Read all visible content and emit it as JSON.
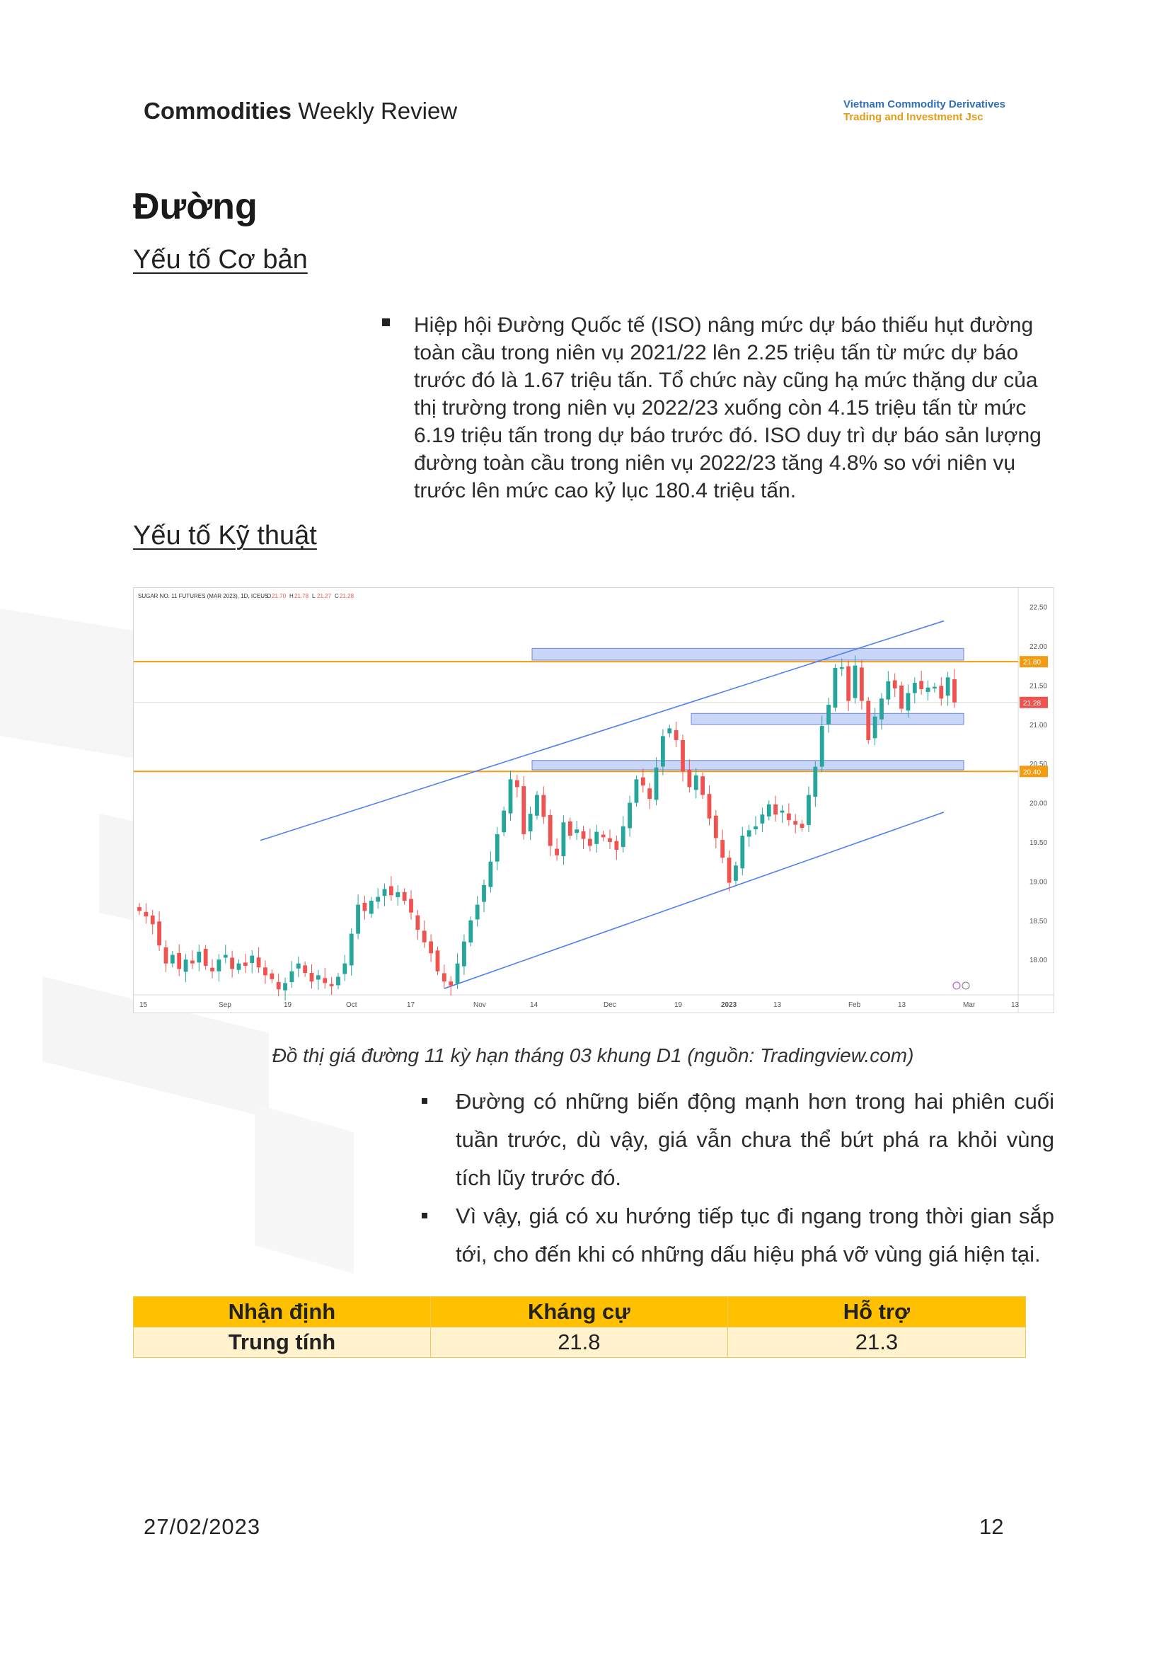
{
  "header": {
    "title_bold": "Commodities",
    "title_rest": " Weekly Review",
    "brand_line1": "Vietnam Commodity Derivatives",
    "brand_line2": "Trading and Investment Jsc",
    "brand_colors": {
      "line1": "#2e6fb7",
      "line2": "#e39b18"
    }
  },
  "section_title": "Đường",
  "fundamentals": {
    "heading": "Yếu tố Cơ bản",
    "paragraph": "Hiệp hội Đường Quốc tế (ISO) nâng mức dự báo thiếu hụt đường toàn cầu trong niên vụ 2021/22 lên 2.25 triệu tấn từ mức dự báo trước đó là 1.67 triệu tấn. Tổ chức này cũng hạ mức thặng dư của thị trường trong niên vụ 2022/23 xuống còn 4.15 triệu tấn từ mức 6.19 triệu tấn trong dự báo trước đó. ISO duy trì dự báo sản lượng đường toàn cầu trong niên vụ 2022/23 tăng 4.8% so với niên vụ trước lên mức cao kỷ lục 180.4 triệu tấn."
  },
  "technical": {
    "heading": "Yếu tố Kỹ thuật"
  },
  "chart_data": {
    "type": "candlestick",
    "title": "SUGAR NO. 11 FUTURES (MAR 2023), 1D, ICEUS",
    "ohlc_label": {
      "O": "21.70",
      "H": "21.78",
      "L": "21.27",
      "C": "21.28"
    },
    "y_ticks": [
      18.0,
      18.5,
      19.0,
      19.5,
      20.0,
      20.5,
      21.0,
      21.5,
      22.0,
      22.5
    ],
    "ylim": [
      17.55,
      22.65
    ],
    "x_ticks": [
      "15",
      "Sep",
      "19",
      "Oct",
      "17",
      "Nov",
      "14",
      "Dec",
      "19",
      "2023",
      "13",
      "Feb",
      "13",
      "Mar",
      "13"
    ],
    "price_tags": [
      {
        "label": "21.80",
        "value": 21.8,
        "color": "#f39c12"
      },
      {
        "label": "21.28",
        "value": 21.28,
        "color": "#ef5350"
      },
      {
        "label": "20.40",
        "value": 20.4,
        "color": "#f39c12"
      }
    ],
    "horizontal_lines": [
      21.8,
      20.4
    ],
    "zones": [
      [
        21.82,
        21.97
      ],
      [
        21.0,
        21.14
      ],
      [
        20.42,
        20.54
      ]
    ],
    "colors": {
      "up": "#26a69a",
      "down": "#ef5350",
      "level": "#f39c12",
      "zone": "#b8c8f5",
      "zone_border": "#6b86d8",
      "channel": "#4f7ff0",
      "last_price": "#ef5350"
    },
    "closes": [
      18.62,
      18.55,
      18.45,
      18.18,
      17.95,
      18.06,
      17.88,
      18.0,
      17.95,
      18.1,
      17.92,
      17.85,
      18.0,
      18.06,
      17.88,
      17.95,
      17.92,
      18.05,
      17.9,
      17.8,
      17.75,
      17.62,
      17.7,
      17.85,
      17.95,
      17.83,
      17.72,
      17.8,
      17.7,
      17.66,
      17.78,
      17.95,
      18.33,
      18.7,
      18.62,
      18.75,
      18.8,
      18.9,
      18.82,
      18.86,
      18.75,
      18.6,
      18.38,
      18.22,
      18.08,
      17.85,
      17.72,
      17.67,
      17.95,
      18.23,
      18.5,
      18.7,
      18.95,
      19.25,
      19.6,
      19.9,
      20.3,
      20.2,
      19.6,
      19.86,
      20.1,
      19.82,
      19.45,
      19.33,
      19.75,
      19.58,
      19.66,
      19.54,
      19.45,
      19.63,
      19.56,
      19.5,
      19.4,
      19.7,
      20.0,
      20.3,
      20.22,
      20.05,
      20.45,
      20.85,
      20.95,
      20.8,
      20.4,
      20.2,
      20.35,
      20.1,
      19.8,
      19.55,
      19.3,
      18.98,
      19.2,
      19.58,
      19.65,
      19.7,
      19.85,
      19.98,
      19.85,
      19.9,
      19.78,
      19.72,
      19.68,
      20.1,
      20.46,
      20.98,
      21.25,
      21.72,
      21.73,
      21.3,
      21.75,
      21.3,
      20.8,
      21.1,
      21.33,
      21.55,
      21.46,
      21.2,
      21.4,
      21.53,
      21.45,
      21.47,
      21.48,
      21.33,
      21.6,
      21.28
    ]
  },
  "caption": "Đồ thị giá đường 11 kỳ hạn tháng 03 khung D1 (nguồn: Tradingview.com)",
  "analysis": [
    "Đường có những biến động mạnh hơn trong hai phiên cuối tuần trước, dù vậy, giá vẫn chưa thể bứt phá ra khỏi vùng tích lũy trước đó.",
    "Vì vậy, giá có xu hướng tiếp tục đi ngang trong thời gian sắp tới, cho đến khi có những dấu hiệu phá vỡ vùng giá hiện tại."
  ],
  "table": {
    "headers": [
      "Nhận định",
      "Kháng cự",
      "Hỗ trợ"
    ],
    "row": [
      "Trung tính",
      "21.8",
      "21.3"
    ],
    "colors": {
      "header_bg": "#ffc000",
      "row_bg": "#fff2cc"
    }
  },
  "footer": {
    "date": "27/02/2023",
    "page": "12"
  }
}
